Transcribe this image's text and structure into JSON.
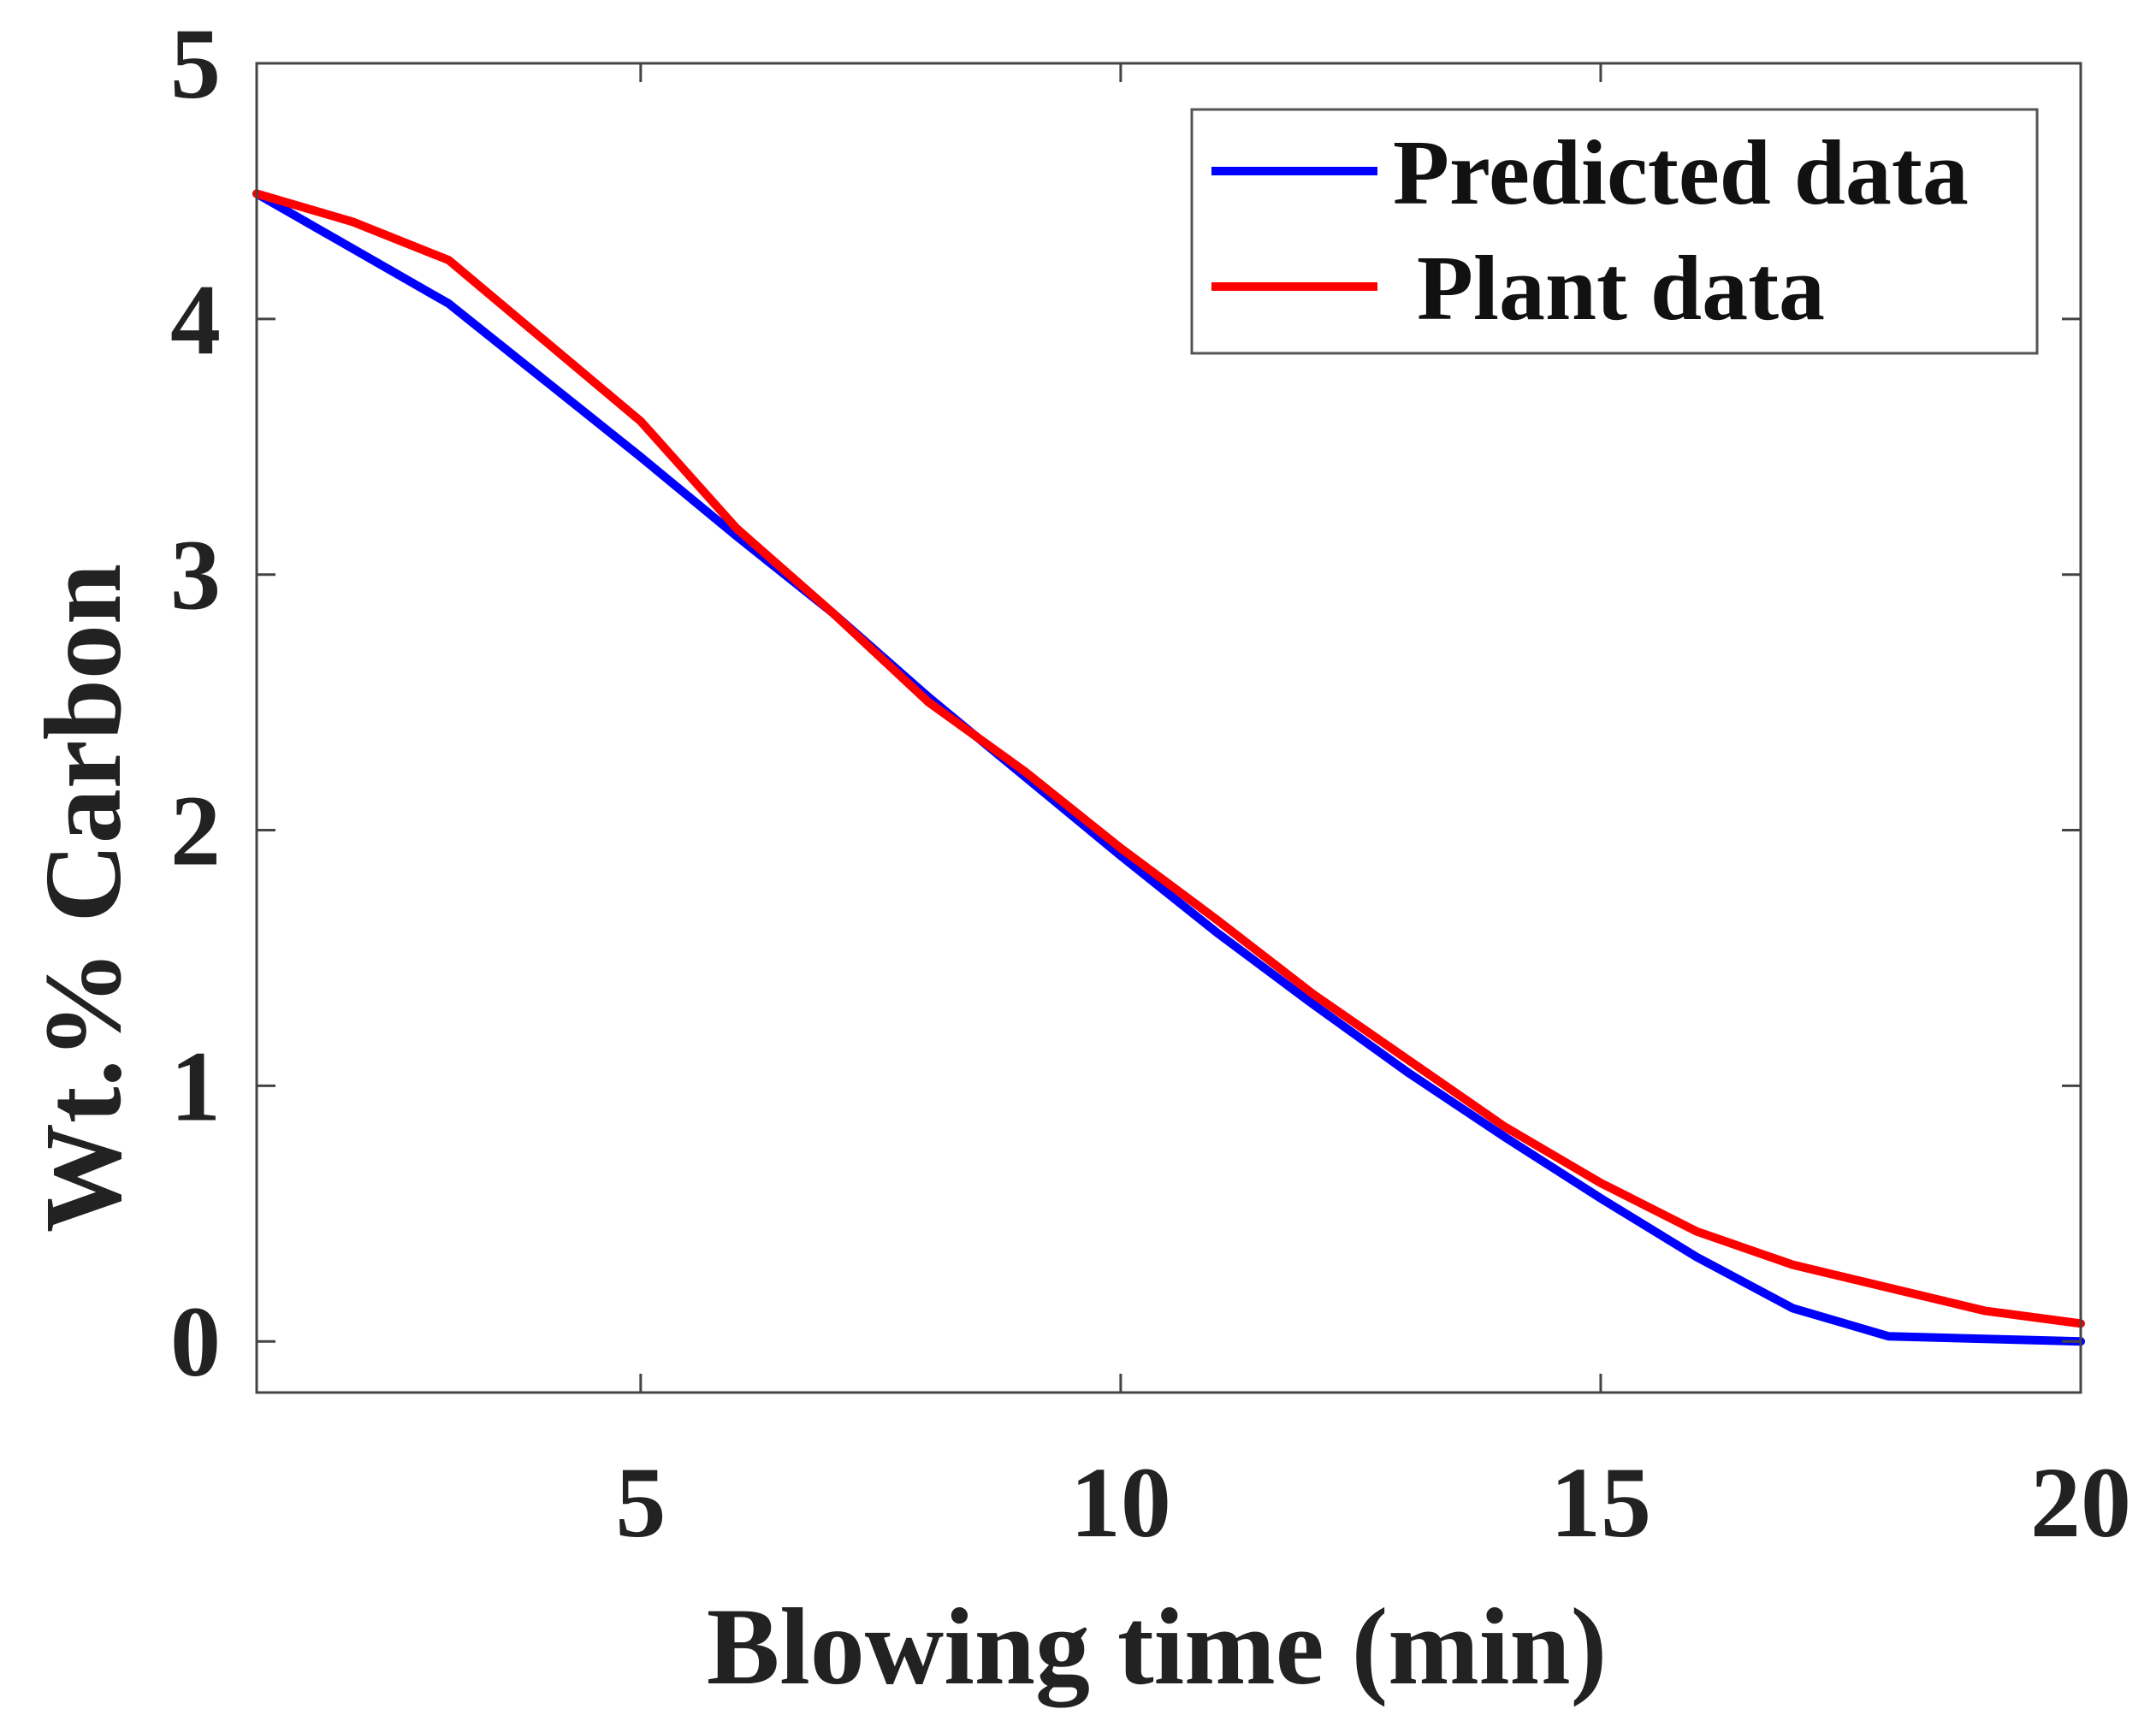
{
  "chart_data": {
    "type": "line",
    "title": "",
    "xlabel": "Blowing time (min)",
    "ylabel": "Wt.% Carbon",
    "xlim": [
      1,
      20
    ],
    "ylim": [
      -0.2,
      5
    ],
    "xticks": [
      5,
      10,
      15,
      20
    ],
    "xtick_labels": [
      "5",
      "10",
      "15",
      "20"
    ],
    "yticks": [
      0,
      1,
      2,
      3,
      4,
      5
    ],
    "ytick_labels": [
      "0",
      "1",
      "2",
      "3",
      "4",
      "5"
    ],
    "grid": false,
    "legend_position": "top-right",
    "series": [
      {
        "name": "Predicted data",
        "color": "#0000ff",
        "x": [
          1,
          3,
          5,
          6,
          7,
          8,
          9,
          10,
          11,
          12,
          13,
          14,
          15,
          16,
          17,
          18,
          19,
          20
        ],
        "y": [
          4.49,
          4.06,
          3.46,
          3.15,
          2.85,
          2.52,
          2.21,
          1.9,
          1.6,
          1.32,
          1.05,
          0.8,
          0.56,
          0.33,
          0.13,
          0.02,
          0.01,
          0.0
        ]
      },
      {
        "name": "Plant data",
        "color": "#ff0000",
        "x": [
          1,
          2,
          3,
          5,
          6,
          7,
          8,
          9,
          10,
          11,
          12,
          13,
          14,
          15,
          16,
          17,
          18,
          19,
          20
        ],
        "y": [
          4.49,
          4.38,
          4.23,
          3.6,
          3.18,
          2.85,
          2.5,
          2.23,
          1.93,
          1.65,
          1.36,
          1.1,
          0.84,
          0.62,
          0.43,
          0.3,
          0.21,
          0.12,
          0.07
        ]
      }
    ]
  }
}
